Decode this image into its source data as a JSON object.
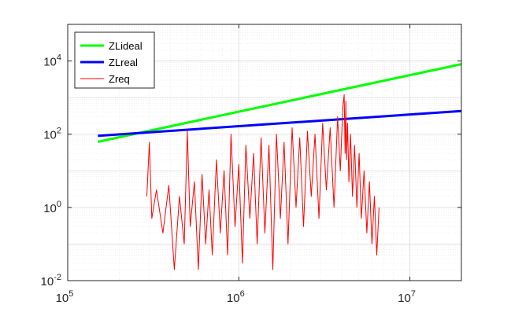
{
  "chart_data": {
    "type": "line",
    "title": "",
    "xlabel": "",
    "ylabel": "",
    "x_scale": "log",
    "y_scale": "log",
    "xlim": [
      100000,
      20000000
    ],
    "ylim": [
      0.01,
      100000
    ],
    "grid": true,
    "minor_grid": true,
    "legend_position": "top-left",
    "x_ticks": [
      {
        "value": 100000,
        "base": "10",
        "exp": "5"
      },
      {
        "value": 1000000,
        "base": "10",
        "exp": "6"
      },
      {
        "value": 10000000,
        "base": "10",
        "exp": "7"
      }
    ],
    "y_ticks": [
      {
        "value": 0.01,
        "base": "10",
        "exp": "-2"
      },
      {
        "value": 1,
        "base": "10",
        "exp": "0"
      },
      {
        "value": 100,
        "base": "10",
        "exp": "2"
      },
      {
        "value": 10000,
        "base": "10",
        "exp": "4"
      }
    ],
    "series": [
      {
        "name": "ZLideal",
        "color": "#00ff00",
        "line_width": 3,
        "x": [
          150000,
          20000000
        ],
        "y": [
          62,
          8200
        ]
      },
      {
        "name": "ZLreal",
        "color": "#0000ff",
        "line_width": 3,
        "x": [
          150000,
          20000000
        ],
        "y": [
          90,
          430
        ]
      },
      {
        "name": "Zreq",
        "color": "#ff0000",
        "line_width": 1,
        "x": [
          290000,
          300000,
          310000,
          330000,
          360000,
          390000,
          420000,
          450000,
          480000,
          500000,
          520000,
          550000,
          580000,
          610000,
          640000,
          670000,
          700000,
          740000,
          780000,
          820000,
          860000,
          900000,
          950000,
          1000000,
          1050000,
          1100000,
          1160000,
          1220000,
          1280000,
          1350000,
          1420000,
          1500000,
          1580000,
          1660000,
          1750000,
          1840000,
          1940000,
          2050000,
          2160000,
          2270000,
          2390000,
          2520000,
          2650000,
          2790000,
          2940000,
          3090000,
          3250000,
          3420000,
          3600000,
          3780000,
          3920000,
          4050000,
          4130000,
          4180000,
          4220000,
          4260000,
          4320000,
          4400000,
          4500000,
          4620000,
          4750000,
          4900000,
          5050000,
          5200000,
          5400000,
          5600000,
          5800000,
          6000000,
          6200000,
          6400000,
          6600000
        ],
        "y": [
          2.0,
          60,
          0.5,
          3.0,
          0.2,
          4.0,
          0.02,
          2.0,
          0.1,
          120,
          0.3,
          5.0,
          0.02,
          8.0,
          0.1,
          3.0,
          0.05,
          20,
          0.2,
          10,
          0.05,
          100,
          0.3,
          15,
          0.03,
          50,
          0.5,
          30,
          0.1,
          80,
          0.2,
          50,
          0.02,
          100,
          0.5,
          60,
          0.1,
          150,
          1.0,
          80,
          0.3,
          120,
          2.0,
          100,
          0.5,
          200,
          3.0,
          150,
          1.0,
          300,
          10,
          500,
          1200,
          30,
          800,
          20,
          200,
          5.0,
          100,
          2.0,
          50,
          1.0,
          30,
          0.5,
          10,
          0.2,
          5.0,
          0.1,
          2.0,
          0.05,
          1.0
        ]
      }
    ]
  }
}
